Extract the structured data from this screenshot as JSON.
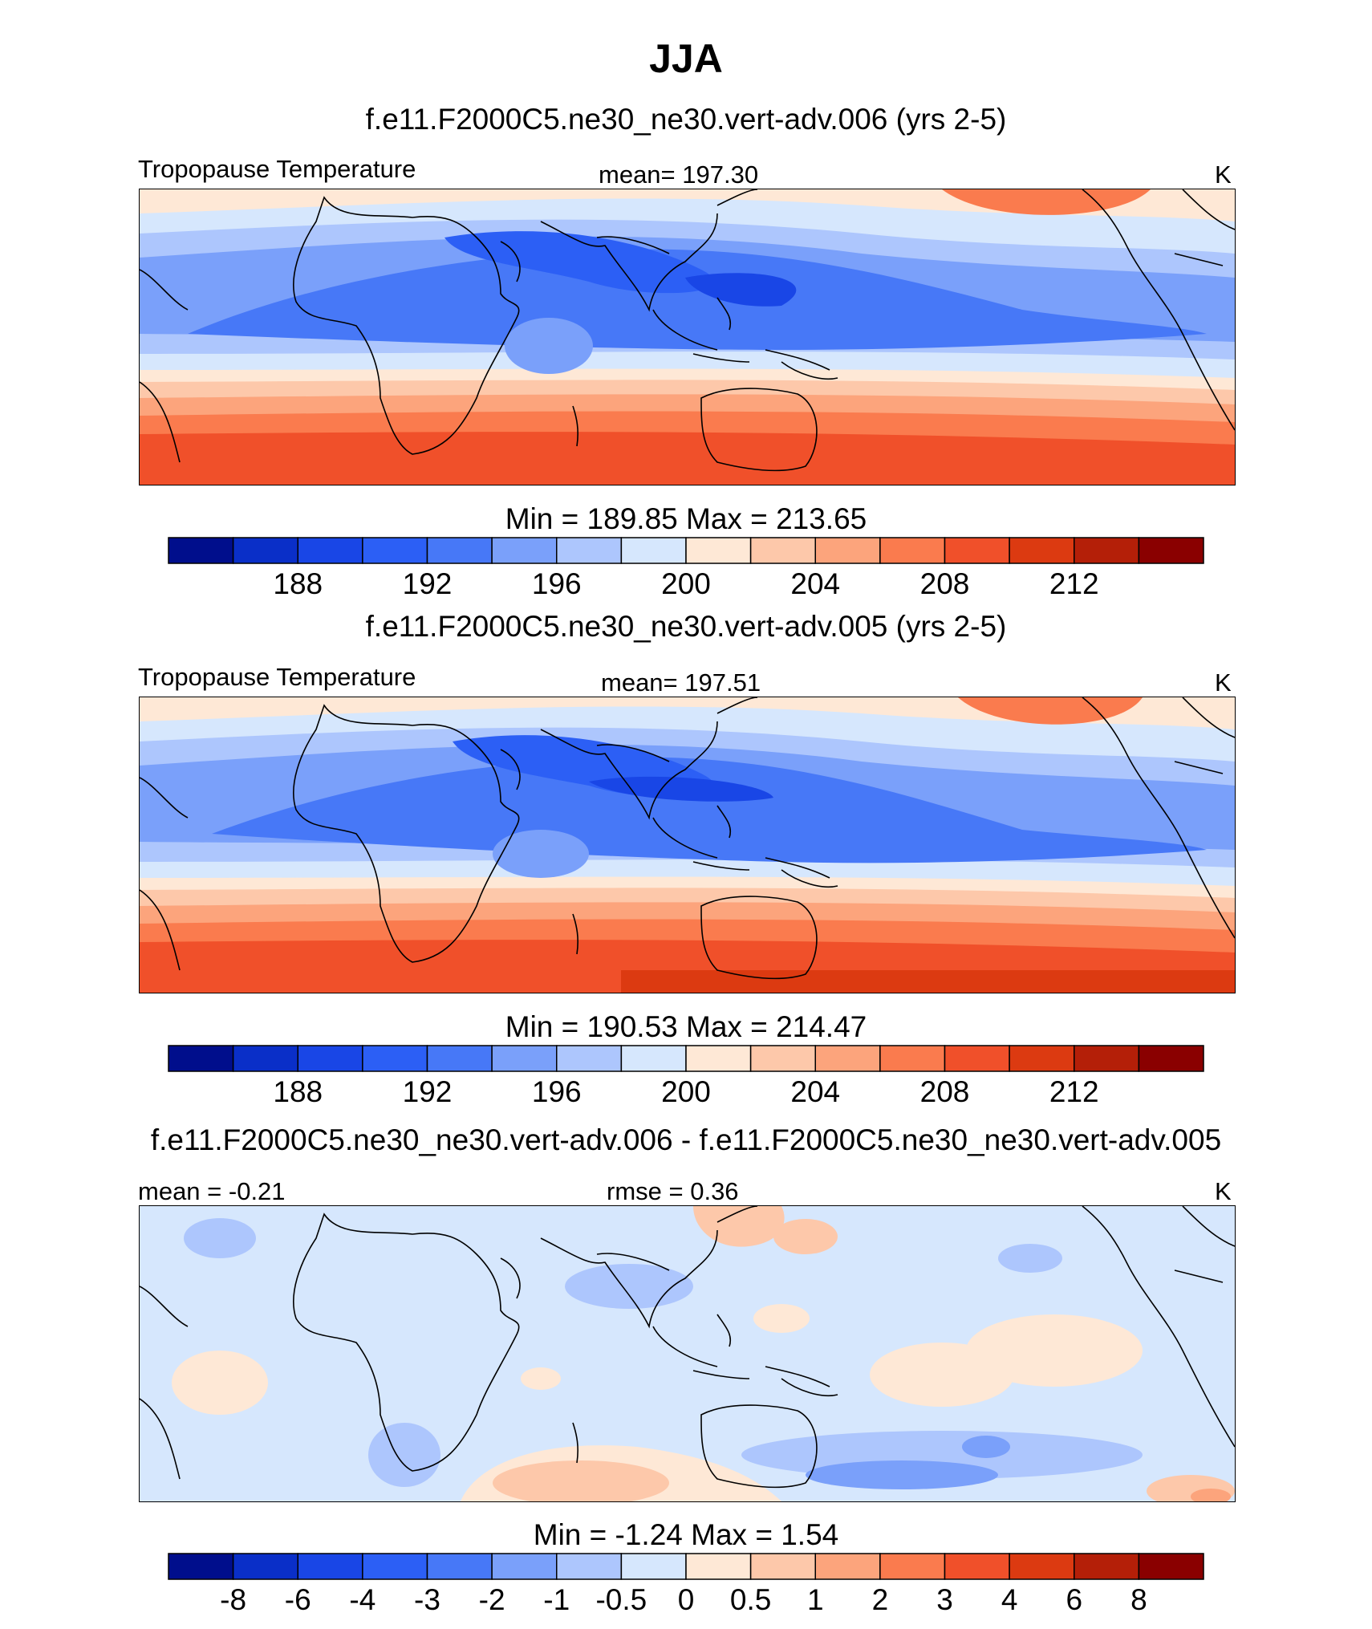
{
  "title": "JJA",
  "chart_data": [
    {
      "type": "heatmap",
      "id": "panel1",
      "title": "f.e11.F2000C5.ne30_ne30.vert-adv.006 (yrs 2-5)",
      "left_label": "Tropopause Temperature",
      "center_label": "mean= 197.30",
      "units": "K",
      "mean": 197.3,
      "minmax_label": "Min = 189.85 Max = 213.65",
      "min": 189.85,
      "max": 213.65,
      "colorbar_levels": [
        186,
        188,
        190,
        192,
        194,
        196,
        198,
        200,
        202,
        204,
        206,
        208,
        210,
        212,
        214
      ],
      "colorbar_tick_labels": [
        "188",
        "192",
        "196",
        "200",
        "204",
        "208",
        "212"
      ]
    },
    {
      "type": "heatmap",
      "id": "panel2",
      "title": "f.e11.F2000C5.ne30_ne30.vert-adv.005 (yrs 2-5)",
      "left_label": "Tropopause Temperature",
      "center_label": "mean= 197.51",
      "units": "K",
      "mean": 197.51,
      "minmax_label": "Min = 190.53 Max = 214.47",
      "min": 190.53,
      "max": 214.47,
      "colorbar_levels": [
        186,
        188,
        190,
        192,
        194,
        196,
        198,
        200,
        202,
        204,
        206,
        208,
        210,
        212,
        214
      ],
      "colorbar_tick_labels": [
        "188",
        "192",
        "196",
        "200",
        "204",
        "208",
        "212"
      ]
    },
    {
      "type": "heatmap",
      "id": "panel3",
      "title": "f.e11.F2000C5.ne30_ne30.vert-adv.006 - f.e11.F2000C5.ne30_ne30.vert-adv.005",
      "left_label": "mean =  -0.21",
      "center_label": "rmse =   0.36",
      "units": "K",
      "mean": -0.21,
      "rmse": 0.36,
      "minmax_label": "Min =  -1.24 Max =   1.54",
      "min": -1.24,
      "max": 1.54,
      "colorbar_levels": [
        -8,
        -6,
        -4,
        -3,
        -2,
        -1,
        -0.5,
        0,
        0.5,
        1,
        2,
        3,
        4,
        6,
        8
      ],
      "colorbar_tick_labels": [
        "-8",
        "-6",
        "-4",
        "-3",
        "-2",
        "-1",
        "-0.5",
        "0",
        "0.5",
        "1",
        "2",
        "3",
        "4",
        "6",
        "8"
      ]
    }
  ],
  "colors": {
    "palette": [
      "#000e8c",
      "#0a2fc8",
      "#1946e6",
      "#2c5ff5",
      "#4778f7",
      "#7aa0fa",
      "#adc6fd",
      "#d6e7fd",
      "#fee8d6",
      "#fdc8aa",
      "#fca47c",
      "#fa7b4e",
      "#f0502a",
      "#dc3a11",
      "#b41f08",
      "#8a0000"
    ],
    "coastline": "#000000"
  }
}
